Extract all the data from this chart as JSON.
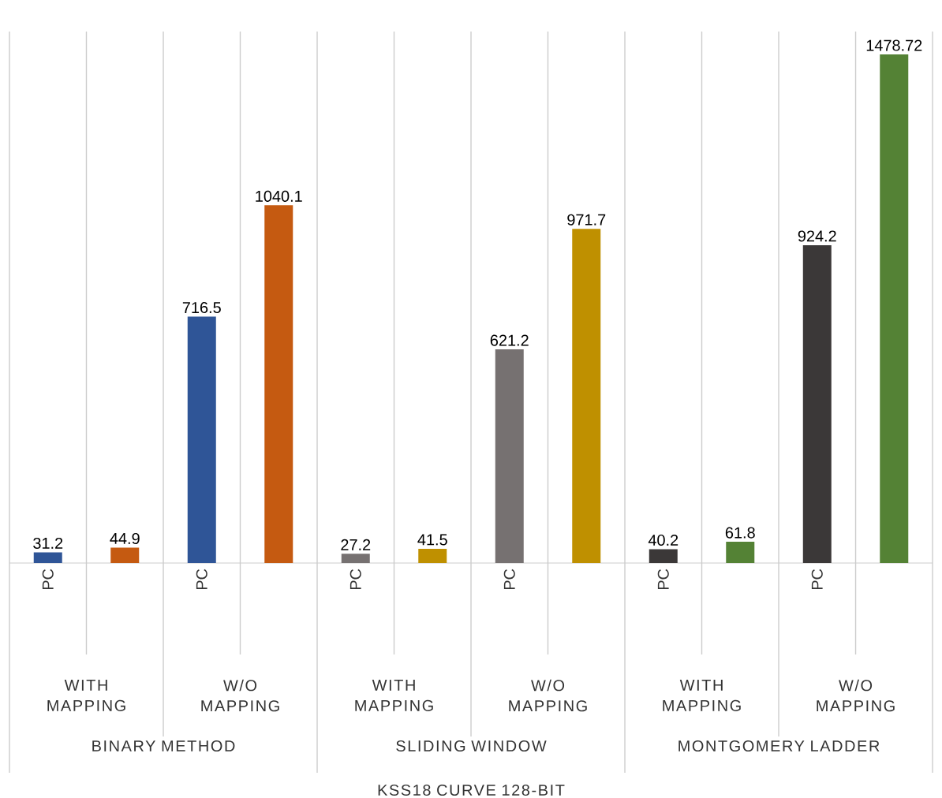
{
  "chart_data": {
    "type": "bar",
    "categories": [
      "PC",
      null,
      "PC",
      null,
      "PC",
      null,
      "PC",
      null,
      "PC",
      null,
      "PC",
      null
    ],
    "values": [
      31.2,
      44.9,
      716.5,
      1040.1,
      27.2,
      41.5,
      621.2,
      971.7,
      40.2,
      61.8,
      924.2,
      1478.72
    ],
    "colors": [
      "#2f5597",
      "#c55a11",
      "#2f5597",
      "#c55a11",
      "#767171",
      "#bf9000",
      "#767171",
      "#bf9000",
      "#3b3838",
      "#548235",
      "#3b3838",
      "#548235"
    ],
    "data_labels": true,
    "annotations": [
      "WITH MAPPING",
      "W/O MAPPING",
      "WITH MAPPING",
      "W/O MAPPING",
      "WITH MAPPING",
      "W/O MAPPING",
      "BINARY METHOD",
      "SLIDING WINDOW",
      "MONTGOMERY LADDER",
      "KSS18 CURVE 128-BIT"
    ]
  }
}
